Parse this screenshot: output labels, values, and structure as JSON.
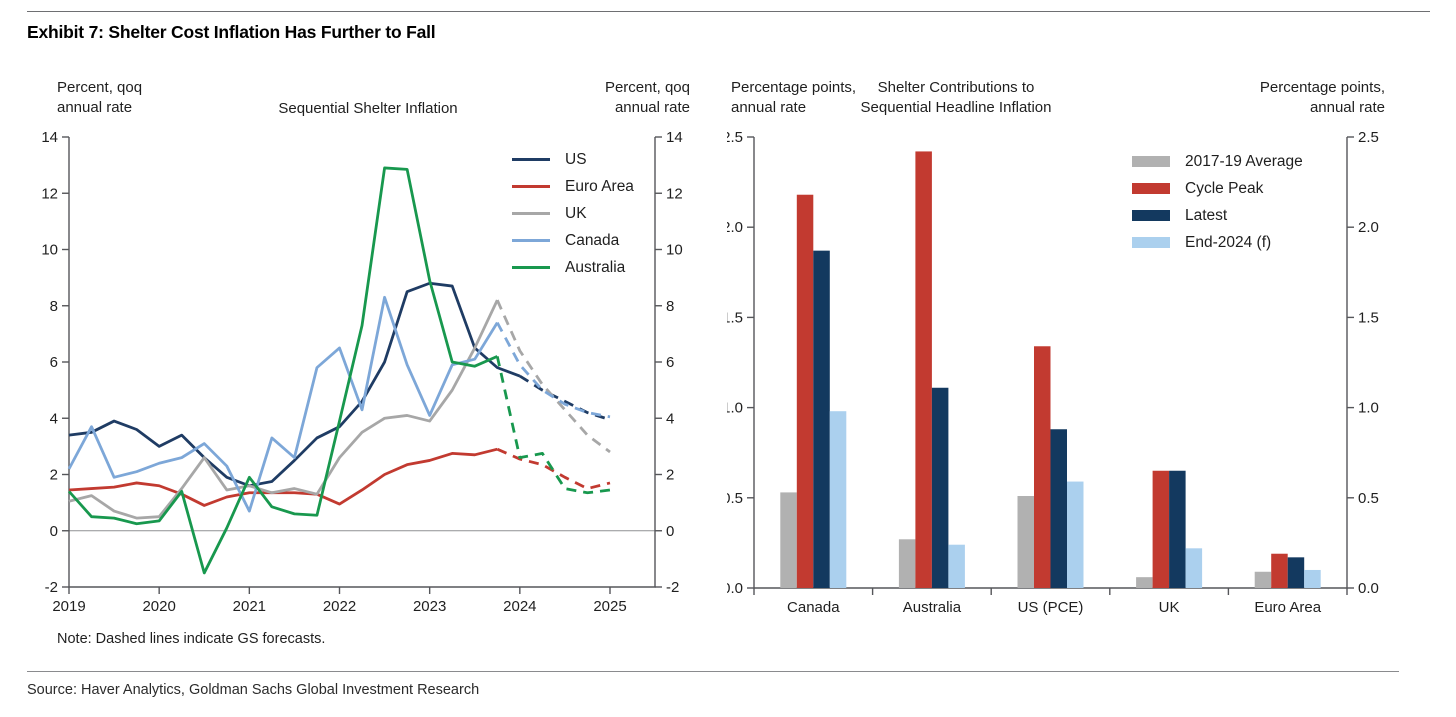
{
  "page": {
    "exhibit_title": "Exhibit 7: Shelter Cost Inflation Has Further to Fall",
    "note": "Note: Dashed lines indicate GS forecasts.",
    "source": "Source: Haver Analytics, Goldman Sachs Global Investment Research"
  },
  "chart_data": [
    {
      "type": "line",
      "title": "Sequential Shelter Inflation",
      "y_axis_label": "Percent, qoq annual rate",
      "y_axis_label_lines": [
        "Percent, qoq",
        "annual rate"
      ],
      "ylim": [
        -2,
        14
      ],
      "y_ticks": [
        14,
        12,
        10,
        8,
        6,
        4,
        2,
        0,
        -2
      ],
      "x_ticks": [
        2019,
        2020,
        2021,
        2022,
        2023,
        2024,
        2025
      ],
      "zero_line": true,
      "forecast_note": "Dashed lines indicate GS forecasts",
      "x": [
        "2019Q1",
        "2019Q2",
        "2019Q3",
        "2019Q4",
        "2020Q1",
        "2020Q2",
        "2020Q3",
        "2020Q4",
        "2021Q1",
        "2021Q2",
        "2021Q3",
        "2021Q4",
        "2022Q1",
        "2022Q2",
        "2022Q3",
        "2022Q4",
        "2023Q1",
        "2023Q2",
        "2023Q3",
        "2023Q4",
        "2024Q1",
        "2024Q2",
        "2024Q3",
        "2024Q4",
        "2025Q1"
      ],
      "series": [
        {
          "name": "US",
          "color": "#1f3c64",
          "dash_from": 20,
          "values": [
            3.4,
            3.5,
            3.9,
            3.6,
            3.0,
            3.4,
            2.6,
            1.9,
            1.6,
            1.75,
            2.5,
            3.3,
            3.7,
            4.6,
            6.0,
            8.5,
            8.8,
            8.7,
            6.5,
            5.8,
            5.5,
            5.0,
            4.6,
            4.2,
            3.95
          ]
        },
        {
          "name": "Euro Area",
          "color": "#c23a30",
          "dash_from": 19,
          "values": [
            1.45,
            1.5,
            1.55,
            1.7,
            1.6,
            1.3,
            0.9,
            1.2,
            1.35,
            1.35,
            1.35,
            1.3,
            0.95,
            1.45,
            2.0,
            2.35,
            2.5,
            2.75,
            2.7,
            2.9,
            2.55,
            2.35,
            1.9,
            1.5,
            1.7
          ]
        },
        {
          "name": "UK",
          "color": "#a7a7a7",
          "dash_from": 19,
          "values": [
            1.05,
            1.25,
            0.7,
            0.45,
            0.5,
            1.5,
            2.6,
            1.45,
            1.6,
            1.35,
            1.5,
            1.3,
            2.6,
            3.5,
            4.0,
            4.1,
            3.9,
            5.0,
            6.5,
            8.2,
            6.4,
            5.2,
            4.3,
            3.4,
            2.8
          ]
        },
        {
          "name": "Canada",
          "color": "#7da7d8",
          "dash_from": 19,
          "values": [
            2.2,
            3.7,
            1.9,
            2.1,
            2.4,
            2.6,
            3.1,
            2.3,
            0.7,
            3.3,
            2.6,
            5.8,
            6.5,
            4.3,
            8.3,
            5.9,
            4.1,
            5.9,
            6.1,
            7.4,
            5.9,
            5.0,
            4.5,
            4.2,
            4.05
          ]
        },
        {
          "name": "Australia",
          "color": "#18984e",
          "dash_from": 19,
          "values": [
            1.4,
            0.5,
            0.45,
            0.25,
            0.35,
            1.4,
            -1.5,
            0.1,
            1.9,
            0.85,
            0.6,
            0.55,
            3.9,
            7.3,
            12.9,
            12.85,
            8.9,
            6.0,
            5.85,
            6.2,
            2.6,
            2.75,
            1.5,
            1.35,
            1.45
          ]
        }
      ]
    },
    {
      "type": "bar",
      "title": "Shelter Contributions to Sequential Headline Inflation",
      "title_lines": [
        "Shelter Contributions to",
        "Sequential Headline Inflation"
      ],
      "y_axis_label": "Percentage points, annual rate",
      "y_axis_label_lines": [
        "Percentage points,",
        "annual rate"
      ],
      "ylim": [
        0,
        2.5
      ],
      "y_ticks": [
        "0.0",
        "0.5",
        "1.0",
        "1.5",
        "2.0",
        "2.5"
      ],
      "categories": [
        "Canada",
        "Australia",
        "US (PCE)",
        "UK",
        "Euro Area"
      ],
      "series": [
        {
          "name": "2017-19 Average",
          "color": "#b1b1b1",
          "values": [
            0.53,
            0.27,
            0.51,
            0.06,
            0.09
          ]
        },
        {
          "name": "Cycle Peak",
          "color": "#c23a30",
          "values": [
            2.18,
            2.42,
            1.34,
            0.65,
            0.19
          ]
        },
        {
          "name": "Latest",
          "color": "#13395f",
          "values": [
            1.87,
            1.11,
            0.88,
            0.65,
            0.17
          ]
        },
        {
          "name": "End-2024 (f)",
          "color": "#abd0ee",
          "values": [
            0.98,
            0.24,
            0.59,
            0.22,
            0.1
          ]
        }
      ]
    }
  ]
}
